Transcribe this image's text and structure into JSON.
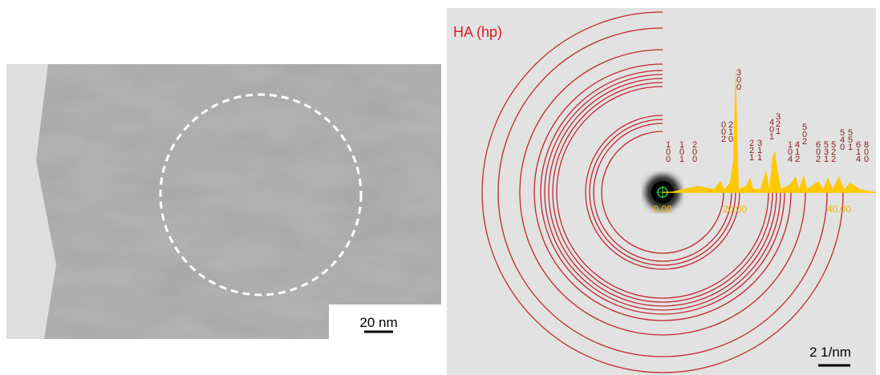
{
  "left_panel": {
    "scale_bar": "20 nm"
  },
  "right_panel": {
    "title": "HA (hp)",
    "axis_labels": [
      "0.00",
      "20.00",
      "40.00"
    ],
    "peak_labels": [
      "100",
      "101",
      "200",
      "002",
      "210",
      "300",
      "221",
      "311",
      "401",
      "321",
      "104",
      "412",
      "502",
      "602",
      "531",
      "522",
      "540",
      "551",
      "614",
      "800"
    ],
    "scale_bar": "2 1/nm"
  }
}
